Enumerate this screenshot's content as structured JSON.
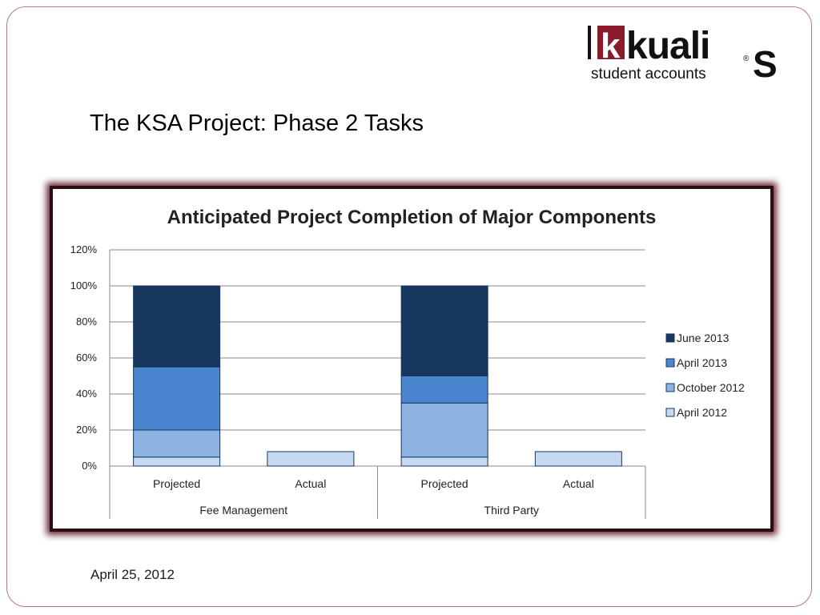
{
  "slide": {
    "title": "The KSA Project: Phase 2 Tasks",
    "date": "April 25, 2012"
  },
  "logo": {
    "word": "kuali",
    "registered": "®",
    "tagline": "student accounts",
    "monogram": "S",
    "brand_color": "#8b1a2b"
  },
  "chart_data": {
    "type": "bar",
    "stacked": true,
    "title": "Anticipated Project Completion of Major Components",
    "xlabel": "",
    "ylabel": "",
    "ylim": [
      0,
      1.2
    ],
    "yticks": [
      "0%",
      "20%",
      "40%",
      "60%",
      "80%",
      "100%",
      "120%"
    ],
    "grid": true,
    "legend_position": "right",
    "groups": [
      "Fee Management",
      "Third Party"
    ],
    "categories": [
      "Projected",
      "Actual",
      "Projected",
      "Actual"
    ],
    "series": [
      {
        "name": "April 2012",
        "color": "#c6d9f1",
        "values": [
          0.05,
          0.08,
          0.05,
          0.08
        ]
      },
      {
        "name": "October 2012",
        "color": "#8db3e2",
        "values": [
          0.15,
          0,
          0.3,
          0
        ]
      },
      {
        "name": "April 2013",
        "color": "#4a86d0",
        "values": [
          0.35,
          0,
          0.15,
          0
        ]
      },
      {
        "name": "June 2013",
        "color": "#17375e",
        "values": [
          0.45,
          0,
          0.5,
          0
        ]
      }
    ]
  }
}
